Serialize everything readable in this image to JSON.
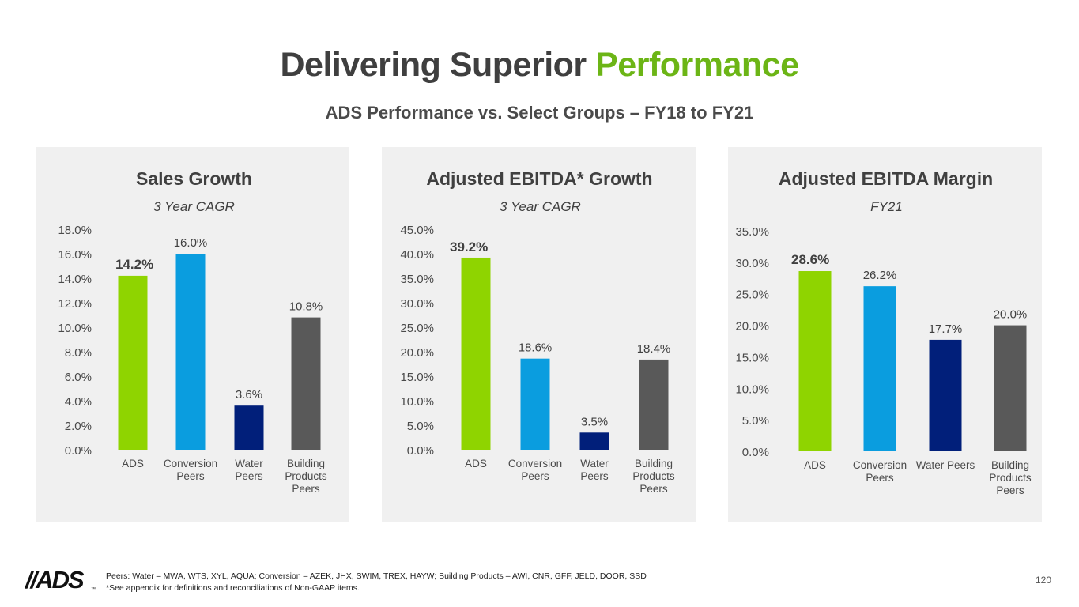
{
  "page": {
    "title_main": "Delivering Superior",
    "title_accent": "Performance",
    "subtitle": "ADS Performance vs. Select Groups – FY18 to FY21",
    "footnote_line1": "Peers: Water – MWA, WTS, XYL, AQUA; Conversion – AZEK, JHX, SWIM, TREX, HAYW; Building Products – AWI, CNR, GFF, JELD, DOOR, SSD",
    "footnote_line2": "*See appendix for definitions and reconciliations of Non-GAAP items.",
    "page_number": "120",
    "logo_text": "//ADS",
    "logo_mark": "™"
  },
  "colors": {
    "ads": "#8fd400",
    "conversion": "#0a9ddf",
    "water": "#011f7a",
    "building": "#595959",
    "accent": "#6cb516"
  },
  "chart_data": [
    {
      "type": "bar",
      "title": "Sales Growth",
      "subtitle": "3 Year CAGR",
      "categories": [
        [
          "ADS"
        ],
        [
          "Conversion",
          "Peers"
        ],
        [
          "Water",
          "Peers"
        ],
        [
          "Building",
          "Products",
          "Peers"
        ]
      ],
      "values": [
        14.2,
        16.0,
        3.6,
        10.8
      ],
      "labels": [
        "14.2%",
        "16.0%",
        "3.6%",
        "10.8%"
      ],
      "highlight": [
        true,
        false,
        false,
        false
      ],
      "ylim": [
        0,
        18
      ],
      "ticks": [
        "0.0%",
        "2.0%",
        "4.0%",
        "6.0%",
        "8.0%",
        "10.0%",
        "12.0%",
        "14.0%",
        "16.0%",
        "18.0%"
      ],
      "colors": [
        "ads",
        "conversion",
        "water",
        "building"
      ]
    },
    {
      "type": "bar",
      "title": "Adjusted EBITDA* Growth",
      "subtitle": "3 Year CAGR",
      "categories": [
        [
          "ADS"
        ],
        [
          "Conversion",
          "Peers"
        ],
        [
          "Water",
          "Peers"
        ],
        [
          "Building",
          "Products",
          "Peers"
        ]
      ],
      "values": [
        39.2,
        18.6,
        3.5,
        18.4
      ],
      "labels": [
        "39.2%",
        "18.6%",
        "3.5%",
        "18.4%"
      ],
      "highlight": [
        true,
        false,
        false,
        false
      ],
      "ylim": [
        0,
        45
      ],
      "ticks": [
        "0.0%",
        "5.0%",
        "10.0%",
        "15.0%",
        "20.0%",
        "25.0%",
        "30.0%",
        "35.0%",
        "40.0%",
        "45.0%"
      ],
      "colors": [
        "ads",
        "conversion",
        "water",
        "building"
      ]
    },
    {
      "type": "bar",
      "title": "Adjusted EBITDA Margin",
      "subtitle": "FY21",
      "categories": [
        [
          "ADS"
        ],
        [
          "Conversion",
          "Peers"
        ],
        [
          "Water Peers"
        ],
        [
          "Building",
          "Products",
          "Peers"
        ]
      ],
      "values": [
        28.6,
        26.2,
        17.7,
        20.0
      ],
      "labels": [
        "28.6%",
        "26.2%",
        "17.7%",
        "20.0%"
      ],
      "highlight": [
        true,
        false,
        false,
        false
      ],
      "ylim": [
        0,
        35
      ],
      "ticks": [
        "0.0%",
        "5.0%",
        "10.0%",
        "15.0%",
        "20.0%",
        "25.0%",
        "30.0%",
        "35.0%"
      ],
      "colors": [
        "ads",
        "conversion",
        "water",
        "building"
      ]
    }
  ]
}
